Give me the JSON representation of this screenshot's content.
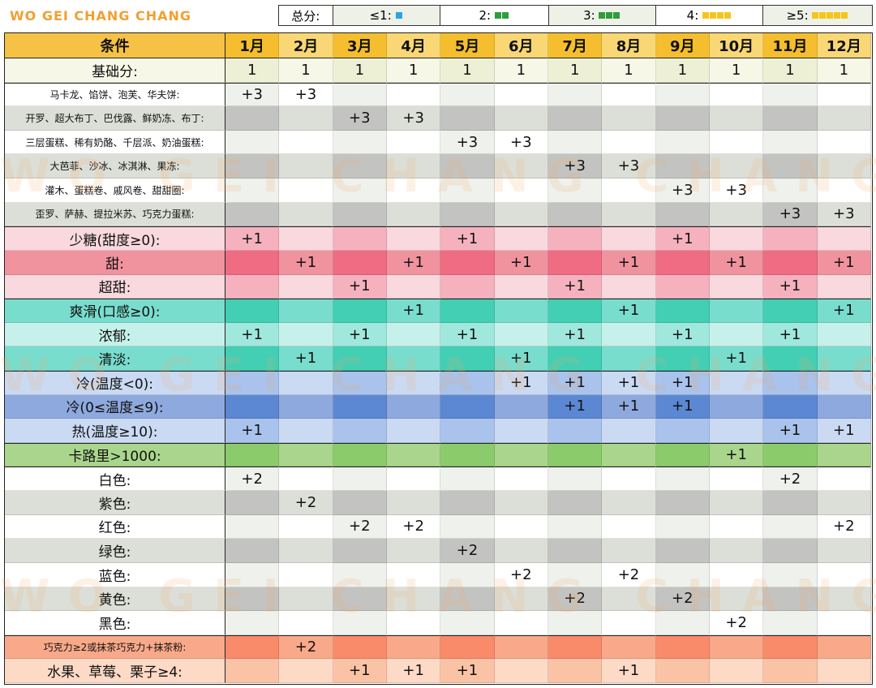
{
  "header": {
    "brand": "WO GEI CHANG CHANG",
    "legend": {
      "label": "总分:",
      "items": [
        "≤1:",
        "2:",
        "3:",
        "4:",
        "≥5:"
      ]
    }
  },
  "watermark": "WO GEI CHANG CHANG",
  "table": {
    "columns": [
      "条件",
      "1月",
      "2月",
      "3月",
      "4月",
      "5月",
      "6月",
      "7月",
      "8月",
      "9月",
      "10月",
      "11月",
      "12月"
    ],
    "rows": [
      [
        "基础分:",
        "1",
        "1",
        "1",
        "1",
        "1",
        "1",
        "1",
        "1",
        "1",
        "1",
        "1",
        "1"
      ],
      [
        "马卡龙、馅饼、泡芙、华夫饼:",
        "+3",
        "+3",
        null,
        null,
        null,
        null,
        null,
        null,
        null,
        null,
        null,
        null
      ],
      [
        "开罗、超大布丁、巴伐露、鲜奶冻、布丁:",
        null,
        null,
        "+3",
        "+3",
        null,
        null,
        null,
        null,
        null,
        null,
        null,
        null
      ],
      [
        "三层蛋糕、稀有奶酪、千层派、奶油蛋糕:",
        null,
        null,
        null,
        null,
        "+3",
        "+3",
        null,
        null,
        null,
        null,
        null,
        null
      ],
      [
        "大芭菲、沙冰、冰淇淋、果冻:",
        null,
        null,
        null,
        null,
        null,
        null,
        "+3",
        "+3",
        null,
        null,
        null,
        null
      ],
      [
        "灌木、蛋糕卷、戚风卷、甜甜圈:",
        null,
        null,
        null,
        null,
        null,
        null,
        null,
        null,
        "+3",
        "+3",
        null,
        null
      ],
      [
        "歪罗、萨赫、提拉米苏、巧克力蛋糕:",
        null,
        null,
        null,
        null,
        null,
        null,
        null,
        null,
        null,
        null,
        "+3",
        "+3"
      ],
      [
        "少糖(甜度≥0):",
        "+1",
        null,
        null,
        null,
        "+1",
        null,
        null,
        null,
        "+1",
        null,
        null,
        null
      ],
      [
        "甜:",
        null,
        "+1",
        null,
        "+1",
        null,
        "+1",
        null,
        "+1",
        null,
        "+1",
        null,
        "+1"
      ],
      [
        "超甜:",
        null,
        null,
        "+1",
        null,
        null,
        null,
        "+1",
        null,
        null,
        null,
        "+1",
        null
      ],
      [
        "爽滑(口感≥0):",
        null,
        null,
        null,
        "+1",
        null,
        null,
        null,
        "+1",
        null,
        null,
        null,
        "+1"
      ],
      [
        "浓郁:",
        "+1",
        null,
        "+1",
        null,
        "+1",
        null,
        "+1",
        null,
        "+1",
        null,
        "+1",
        null
      ],
      [
        "清淡:",
        null,
        "+1",
        null,
        null,
        null,
        "+1",
        null,
        null,
        null,
        "+1",
        null,
        null
      ],
      [
        "冷(温度<0):",
        null,
        null,
        null,
        null,
        null,
        "+1",
        "+1",
        "+1",
        "+1",
        null,
        null,
        null
      ],
      [
        "冷(0≤温度≤9):",
        null,
        null,
        null,
        null,
        null,
        null,
        "+1",
        "+1",
        "+1",
        null,
        null,
        null
      ],
      [
        "热(温度≥10):",
        "+1",
        null,
        null,
        null,
        null,
        null,
        null,
        null,
        null,
        null,
        "+1",
        "+1"
      ],
      [
        "卡路里>1000:",
        null,
        null,
        null,
        null,
        null,
        null,
        null,
        null,
        null,
        "+1",
        null,
        null
      ],
      [
        "白色:",
        "+2",
        null,
        null,
        null,
        null,
        null,
        null,
        null,
        null,
        null,
        "+2",
        null
      ],
      [
        "紫色:",
        null,
        "+2",
        null,
        null,
        null,
        null,
        null,
        null,
        null,
        null,
        null,
        null
      ],
      [
        "红色:",
        null,
        null,
        "+2",
        "+2",
        null,
        null,
        null,
        null,
        null,
        null,
        null,
        "+2"
      ],
      [
        "绿色:",
        null,
        null,
        null,
        null,
        "+2",
        null,
        null,
        null,
        null,
        null,
        null,
        null
      ],
      [
        "蓝色:",
        null,
        null,
        null,
        null,
        null,
        "+2",
        null,
        "+2",
        null,
        null,
        null,
        null
      ],
      [
        "黄色:",
        null,
        null,
        null,
        null,
        null,
        null,
        "+2",
        null,
        "+2",
        null,
        null,
        null
      ],
      [
        "黑色:",
        null,
        null,
        null,
        null,
        null,
        null,
        null,
        null,
        null,
        "+2",
        null,
        null
      ],
      [
        "巧克力≥2或抹茶巧克力+抹茶粉:",
        null,
        "+2",
        null,
        null,
        null,
        null,
        null,
        null,
        null,
        null,
        null,
        null
      ],
      [
        "水果、草莓、栗子≥4:",
        null,
        null,
        "+1",
        "+1",
        "+1",
        null,
        null,
        "+1",
        null,
        null,
        null,
        null
      ]
    ]
  }
}
